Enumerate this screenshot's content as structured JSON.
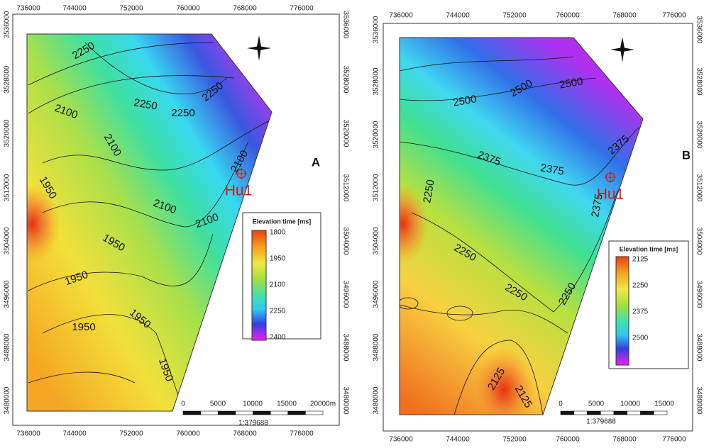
{
  "panels": [
    {
      "letter": "A",
      "x_ticks": [
        "736000",
        "744000",
        "752000",
        "760000",
        "768000",
        "776000"
      ],
      "y_ticks": [
        "3536000",
        "3528000",
        "3520000",
        "3512000",
        "3504000",
        "3496000",
        "3488000",
        "3480000"
      ],
      "contour_labels": [
        "2250",
        "2250",
        "2250",
        "2250",
        "2100",
        "2100",
        "2100",
        "2100",
        "2100",
        "1950",
        "1950",
        "1950",
        "1950",
        "1950",
        "1950"
      ],
      "well": "Hu1",
      "legend": {
        "title": "Elevation time [ms]",
        "ticks": [
          "1800",
          "1950",
          "2100",
          "2250",
          "2400"
        ]
      },
      "scale_bar": {
        "ticks": [
          "0",
          "5000",
          "10000",
          "15000",
          "20000m"
        ],
        "ratio": "1:379688"
      }
    },
    {
      "letter": "B",
      "x_ticks": [
        "736000",
        "744000",
        "752000",
        "760000",
        "768000",
        "776000"
      ],
      "y_ticks": [
        "3536000",
        "3528000",
        "3520000",
        "3512000",
        "3504000",
        "3496000",
        "3488000",
        "3480000"
      ],
      "contour_labels": [
        "2500",
        "2500",
        "2500",
        "2375",
        "2375",
        "2375",
        "2375",
        "2250",
        "2250",
        "2250",
        "2250",
        "2125",
        "2125"
      ],
      "well": "Hu1",
      "legend": {
        "title": "Elevation time [ms]",
        "ticks": [
          "2125",
          "2250",
          "2375",
          "2500"
        ]
      },
      "scale_bar": {
        "ticks": [
          "0",
          "5000",
          "10000",
          "15000"
        ],
        "ratio": "1:379688"
      }
    }
  ]
}
